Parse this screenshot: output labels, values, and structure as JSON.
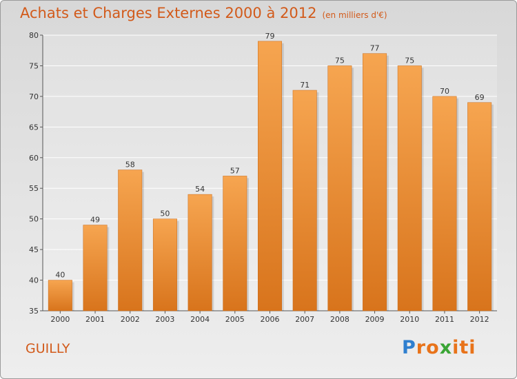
{
  "title": "Achats et Charges Externes 2000 à 2012",
  "subtitle": "(en milliers d'€)",
  "town": "GUILLY",
  "logo": {
    "letters": [
      "P",
      "r",
      "o",
      "x",
      "i",
      "t",
      "i"
    ],
    "colors": [
      "#2f7fcf",
      "#e8731a",
      "#e8731a",
      "#3aa535",
      "#e8731a",
      "#e8731a",
      "#e8731a"
    ]
  },
  "chart_data": {
    "type": "bar",
    "categories": [
      "2000",
      "2001",
      "2002",
      "2003",
      "2004",
      "2005",
      "2006",
      "2007",
      "2008",
      "2009",
      "2010",
      "2011",
      "2012"
    ],
    "values": [
      40,
      49,
      58,
      50,
      54,
      57,
      79,
      71,
      75,
      77,
      75,
      70,
      69
    ],
    "title": "Achats et Charges Externes 2000 à 2012",
    "subtitle": "(en milliers d'€)",
    "ylim": [
      35,
      80
    ],
    "yticks": [
      35,
      40,
      45,
      50,
      55,
      60,
      65,
      70,
      75,
      80
    ],
    "grid": true,
    "bar_color_top": "#f6a550",
    "bar_color_bottom": "#d8741c"
  }
}
